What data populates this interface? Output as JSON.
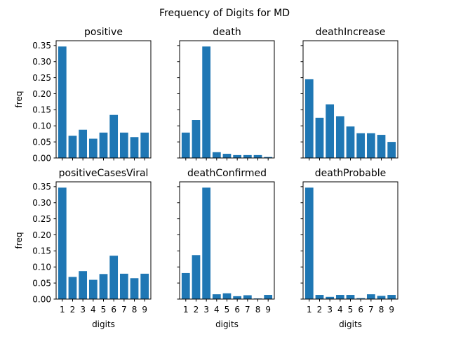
{
  "figure": {
    "title": "Frequency of Digits for MD"
  },
  "chart_data": [
    {
      "type": "bar",
      "title": "positive",
      "categories": [
        "1",
        "2",
        "3",
        "4",
        "5",
        "6",
        "7",
        "8",
        "9"
      ],
      "values": [
        0.347,
        0.069,
        0.088,
        0.06,
        0.079,
        0.134,
        0.079,
        0.065,
        0.079
      ],
      "xlabel": "",
      "ylabel": "freq",
      "ylim": [
        0,
        0.365
      ],
      "yticks": [
        "0.00",
        "0.05",
        "0.10",
        "0.15",
        "0.20",
        "0.25",
        "0.30",
        "0.35"
      ],
      "color": "#1f77b4",
      "show_xtick_labels": false,
      "show_ytick_labels": true
    },
    {
      "type": "bar",
      "title": "death",
      "categories": [
        "1",
        "2",
        "3",
        "4",
        "5",
        "6",
        "7",
        "8",
        "9"
      ],
      "values": [
        0.079,
        0.118,
        0.347,
        0.018,
        0.013,
        0.009,
        0.009,
        0.009,
        0.003
      ],
      "xlabel": "",
      "ylabel": "",
      "ylim": [
        0,
        0.365
      ],
      "yticks": [
        "0.00",
        "0.05",
        "0.10",
        "0.15",
        "0.20",
        "0.25",
        "0.30",
        "0.35"
      ],
      "color": "#1f77b4",
      "show_xtick_labels": false,
      "show_ytick_labels": false
    },
    {
      "type": "bar",
      "title": "deathIncrease",
      "categories": [
        "1",
        "2",
        "3",
        "4",
        "5",
        "6",
        "7",
        "8",
        "9"
      ],
      "values": [
        0.245,
        0.125,
        0.167,
        0.13,
        0.098,
        0.077,
        0.077,
        0.072,
        0.05
      ],
      "xlabel": "",
      "ylabel": "",
      "ylim": [
        0,
        0.365
      ],
      "yticks": [
        "0.00",
        "0.05",
        "0.10",
        "0.15",
        "0.20",
        "0.25",
        "0.30",
        "0.35"
      ],
      "color": "#1f77b4",
      "show_xtick_labels": false,
      "show_ytick_labels": false
    },
    {
      "type": "bar",
      "title": "positiveCasesViral",
      "categories": [
        "1",
        "2",
        "3",
        "4",
        "5",
        "6",
        "7",
        "8",
        "9"
      ],
      "values": [
        0.347,
        0.069,
        0.087,
        0.06,
        0.078,
        0.135,
        0.079,
        0.065,
        0.079
      ],
      "xlabel": "digits",
      "ylabel": "freq",
      "ylim": [
        0,
        0.365
      ],
      "yticks": [
        "0.00",
        "0.05",
        "0.10",
        "0.15",
        "0.20",
        "0.25",
        "0.30",
        "0.35"
      ],
      "color": "#1f77b4",
      "show_xtick_labels": true,
      "show_ytick_labels": true
    },
    {
      "type": "bar",
      "title": "deathConfirmed",
      "categories": [
        "1",
        "2",
        "3",
        "4",
        "5",
        "6",
        "7",
        "8",
        "9"
      ],
      "values": [
        0.081,
        0.137,
        0.347,
        0.015,
        0.018,
        0.009,
        0.012,
        0.002,
        0.013
      ],
      "xlabel": "digits",
      "ylabel": "",
      "ylim": [
        0,
        0.365
      ],
      "yticks": [
        "0.00",
        "0.05",
        "0.10",
        "0.15",
        "0.20",
        "0.25",
        "0.30",
        "0.35"
      ],
      "color": "#1f77b4",
      "show_xtick_labels": true,
      "show_ytick_labels": false
    },
    {
      "type": "bar",
      "title": "deathProbable",
      "categories": [
        "1",
        "2",
        "3",
        "4",
        "5",
        "6",
        "7",
        "8",
        "9"
      ],
      "values": [
        0.347,
        0.013,
        0.007,
        0.013,
        0.013,
        0.003,
        0.015,
        0.01,
        0.013
      ],
      "xlabel": "digits",
      "ylabel": "",
      "ylim": [
        0,
        0.365
      ],
      "yticks": [
        "0.00",
        "0.05",
        "0.10",
        "0.15",
        "0.20",
        "0.25",
        "0.30",
        "0.35"
      ],
      "color": "#1f77b4",
      "show_xtick_labels": true,
      "show_ytick_labels": false
    }
  ]
}
